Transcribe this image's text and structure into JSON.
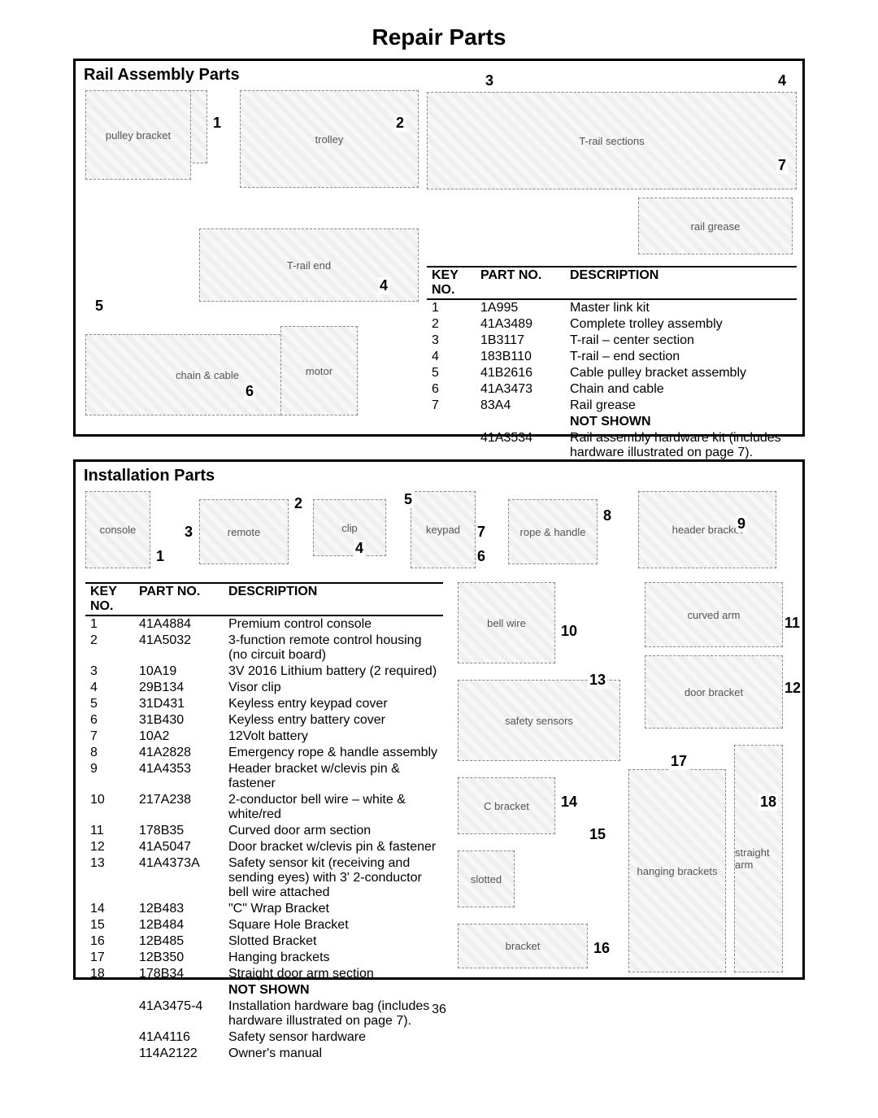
{
  "page": {
    "title": "Repair Parts",
    "number": "36"
  },
  "rail": {
    "title": "Rail Assembly Parts",
    "callouts": [
      "1",
      "2",
      "3",
      "4",
      "5",
      "6",
      "7",
      "4"
    ],
    "headers": {
      "key": "KEY NO.",
      "part": "PART NO.",
      "desc": "DESCRIPTION"
    },
    "rows": [
      {
        "key": "1",
        "part": "1A995",
        "desc": "Master link kit"
      },
      {
        "key": "2",
        "part": "41A3489",
        "desc": "Complete trolley assembly"
      },
      {
        "key": "3",
        "part": "1B3117",
        "desc": "T-rail – center section"
      },
      {
        "key": "4",
        "part": "183B110",
        "desc": "T-rail – end section"
      },
      {
        "key": "5",
        "part": "41B2616",
        "desc": "Cable pulley bracket assembly"
      },
      {
        "key": "6",
        "part": "41A3473",
        "desc": "Chain and cable"
      },
      {
        "key": "7",
        "part": "83A4",
        "desc": "Rail grease"
      }
    ],
    "notshown_label": "NOT SHOWN",
    "notshown": [
      {
        "key": "",
        "part": "41A3534",
        "desc": "Rail assembly hardware kit (includes hardware illustrated on page 7)."
      }
    ]
  },
  "inst": {
    "title": "Installation Parts",
    "headers": {
      "key": "KEY NO.",
      "part": "PART NO.",
      "desc": "DESCRIPTION"
    },
    "callouts_top": [
      "1",
      "2",
      "3",
      "4",
      "5",
      "6",
      "7",
      "8",
      "9"
    ],
    "callouts_right": [
      "10",
      "11",
      "12",
      "13",
      "14",
      "15",
      "16",
      "17",
      "18"
    ],
    "rows": [
      {
        "key": "1",
        "part": "41A4884",
        "desc": "Premium control console"
      },
      {
        "key": "2",
        "part": "41A5032",
        "desc": "3-function remote control housing (no circuit board)"
      },
      {
        "key": "3",
        "part": "10A19",
        "desc": "3V 2016 Lithium battery (2 required)"
      },
      {
        "key": "4",
        "part": "29B134",
        "desc": "Visor clip"
      },
      {
        "key": "5",
        "part": "31D431",
        "desc": "Keyless entry keypad cover"
      },
      {
        "key": "6",
        "part": "31B430",
        "desc": "Keyless entry battery cover"
      },
      {
        "key": "7",
        "part": "10A2",
        "desc": "12Volt battery"
      },
      {
        "key": "8",
        "part": "41A2828",
        "desc": "Emergency rope & handle assembly"
      },
      {
        "key": "9",
        "part": "41A4353",
        "desc": "Header bracket w/clevis pin & fastener"
      },
      {
        "key": "10",
        "part": "217A238",
        "desc": "2-conductor bell wire – white & white/red"
      },
      {
        "key": "11",
        "part": "178B35",
        "desc": "Curved door arm section"
      },
      {
        "key": "12",
        "part": "41A5047",
        "desc": "Door bracket w/clevis pin & fastener"
      },
      {
        "key": "13",
        "part": "41A4373A",
        "desc": "Safety sensor kit (receiving and sending eyes) with 3' 2-conductor bell wire attached"
      },
      {
        "key": "14",
        "part": "12B483",
        "desc": "\"C\" Wrap Bracket"
      },
      {
        "key": "15",
        "part": "12B484",
        "desc": "Square Hole Bracket"
      },
      {
        "key": "16",
        "part": "12B485",
        "desc": "Slotted Bracket"
      },
      {
        "key": "17",
        "part": "12B350",
        "desc": "Hanging brackets"
      },
      {
        "key": "18",
        "part": "178B34",
        "desc": "Straight door arm section"
      }
    ],
    "notshown_label": "NOT SHOWN",
    "notshown": [
      {
        "key": "",
        "part": "41A3475-4",
        "desc": "Installation hardware bag (includes hardware illustrated on page 7)."
      },
      {
        "key": "",
        "part": "41A4116",
        "desc": "Safety sensor hardware"
      },
      {
        "key": "",
        "part": "114A2122",
        "desc": "Owner's manual"
      }
    ]
  }
}
